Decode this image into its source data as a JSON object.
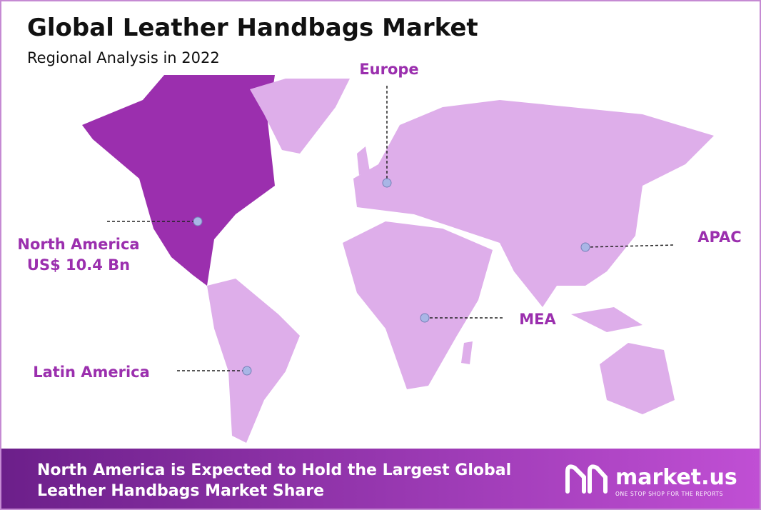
{
  "header": {
    "title": "Global Leather Handbags Market",
    "subtitle": "Regional Analysis in 2022"
  },
  "regions": [
    {
      "name": "North America",
      "value": "US$ 10.4 Bn"
    },
    {
      "name": "Europe"
    },
    {
      "name": "APAC"
    },
    {
      "name": "MEA"
    },
    {
      "name": "Latin America"
    }
  ],
  "footer": {
    "lines": [
      "North America is Expected to Hold the Largest Global",
      "Leather Handbags Market Share"
    ],
    "logo": "market.us",
    "tagline": "ONE STOP SHOP FOR THE REPORTS"
  }
}
